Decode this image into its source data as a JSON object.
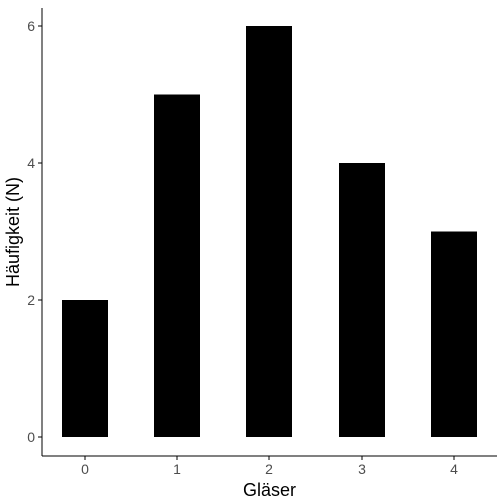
{
  "chart_data": {
    "type": "bar",
    "title": "",
    "xlabel": "Gläser",
    "ylabel": "Häufigkeit (N)",
    "categories": [
      "0",
      "1",
      "2",
      "3",
      "4"
    ],
    "values": [
      2,
      5,
      6,
      4,
      3
    ],
    "ylim": [
      0,
      6
    ],
    "yticks": [
      "0",
      "2",
      "4",
      "6"
    ],
    "grid": false,
    "legend": "none",
    "bar_color": "#000000",
    "axis_color": "#000000",
    "tick_label_color": "#4d4d4d"
  }
}
